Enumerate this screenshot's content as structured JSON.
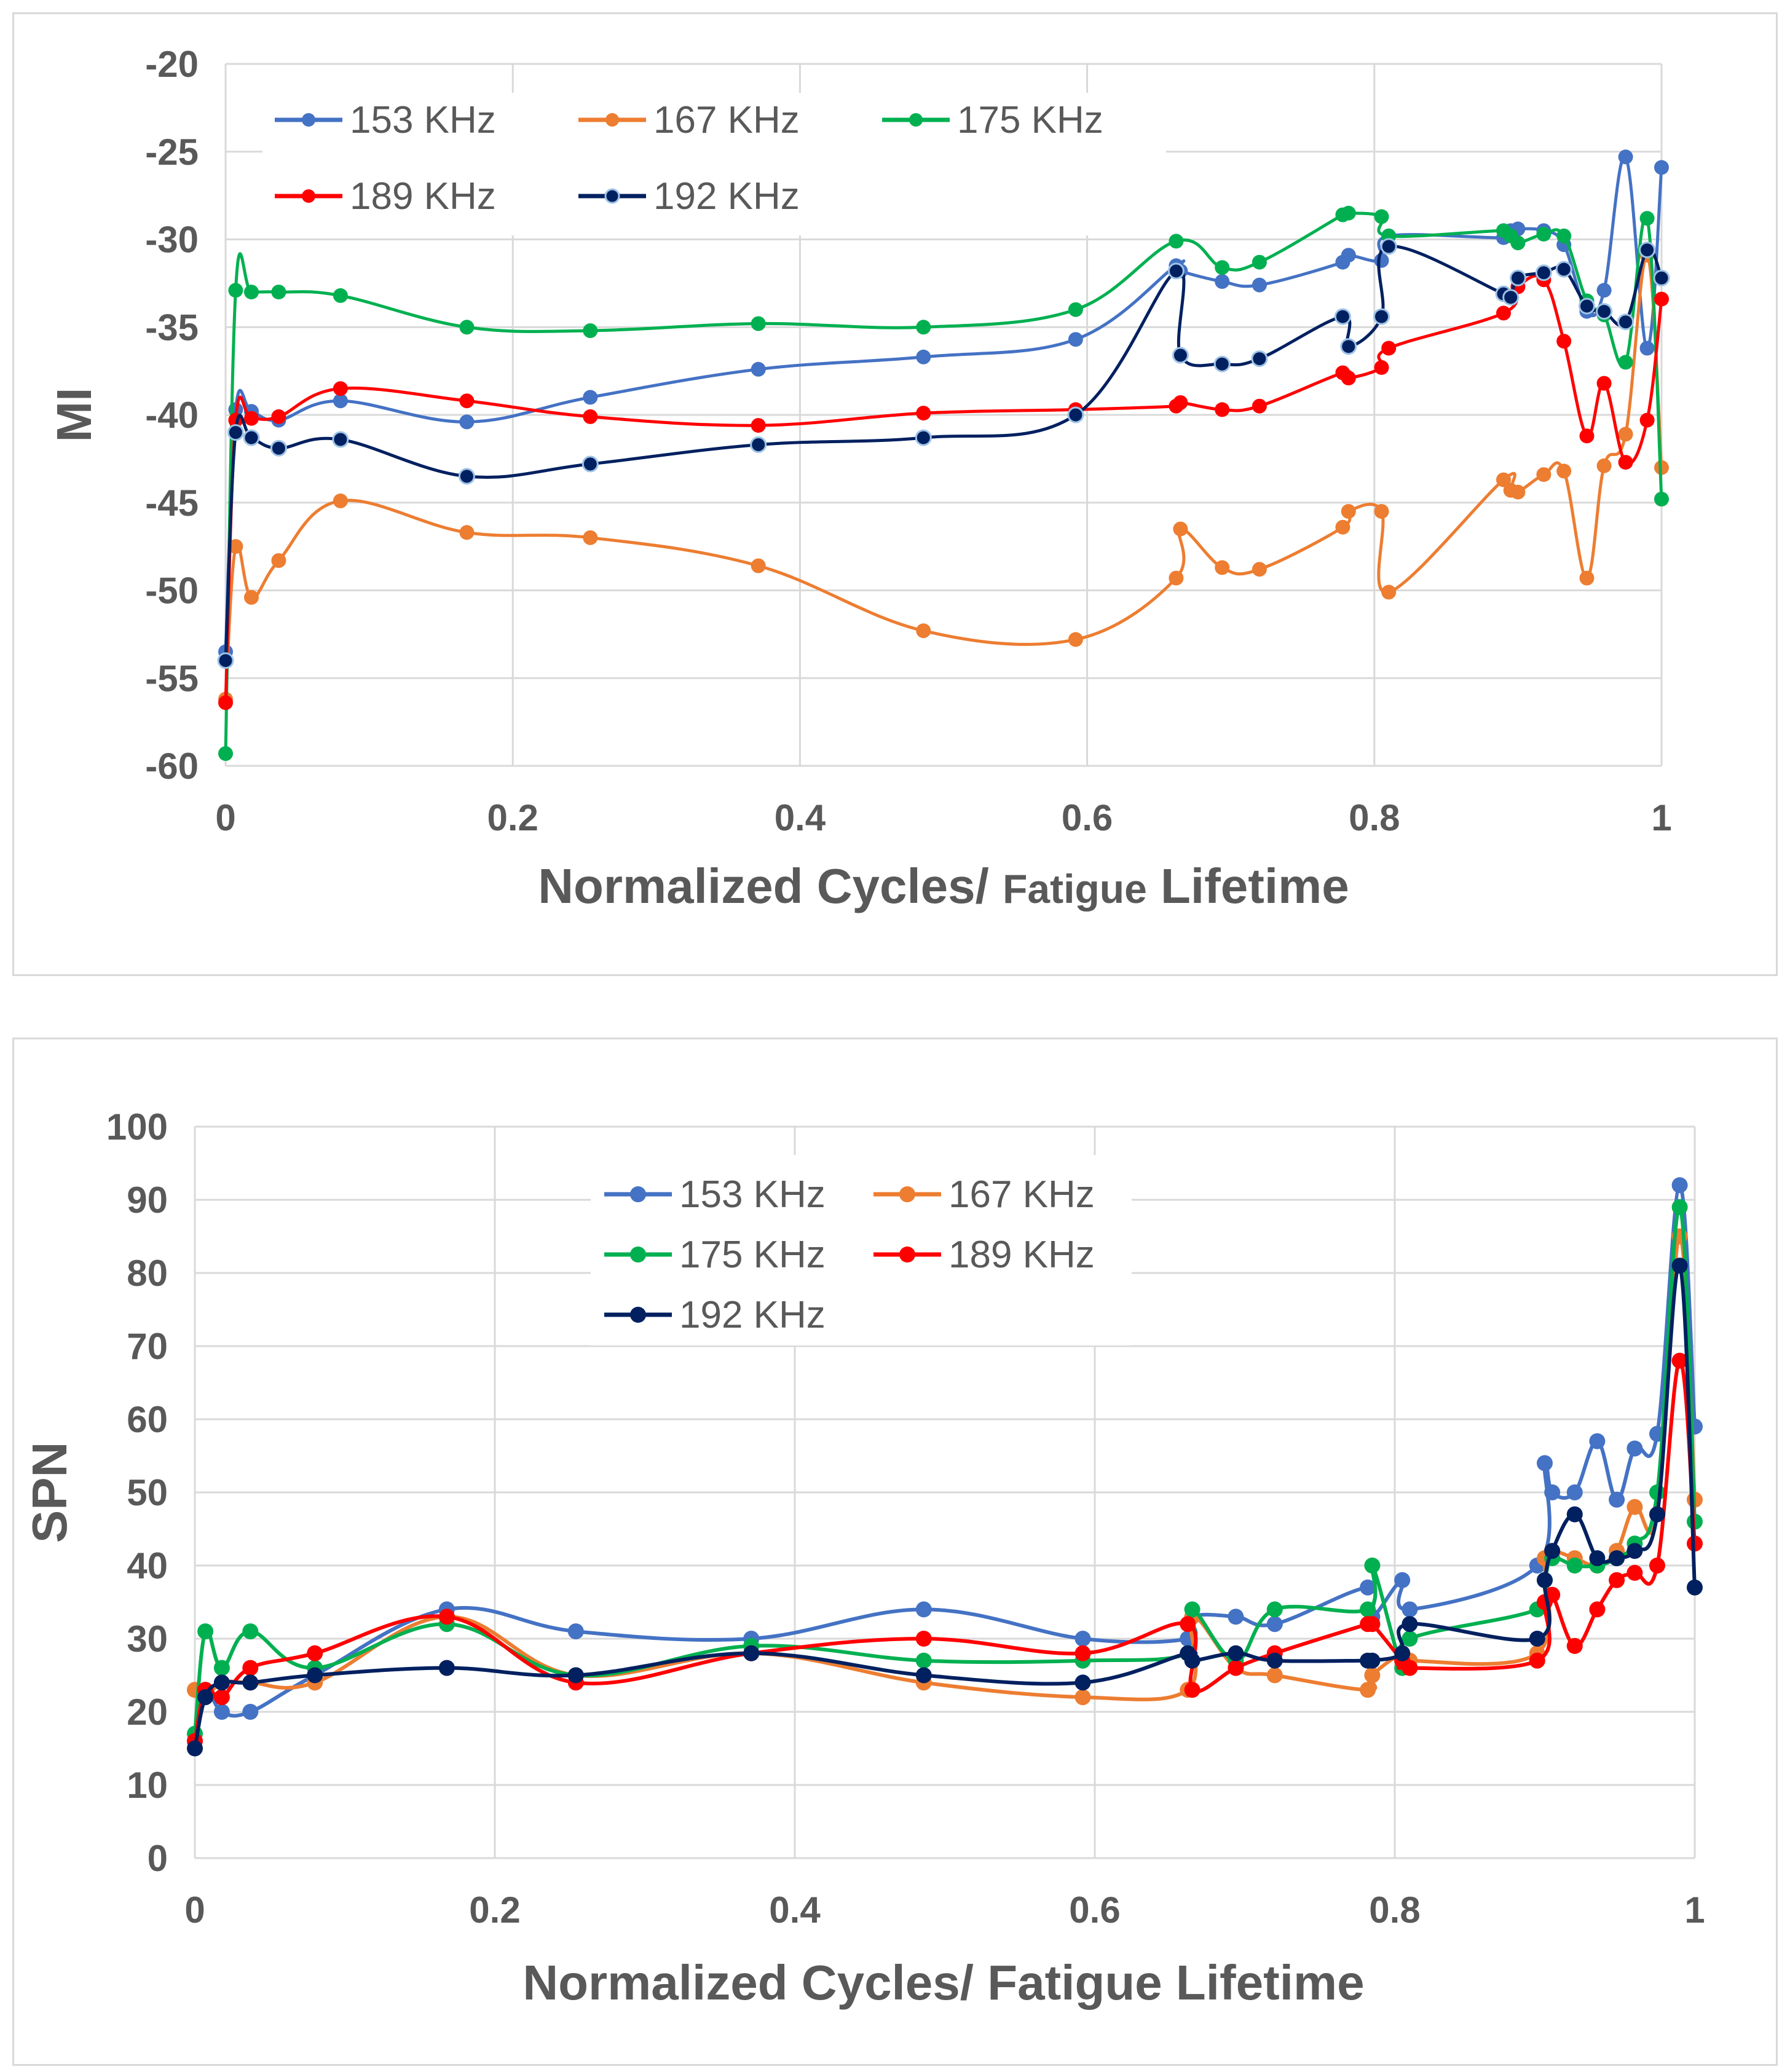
{
  "chart_data": [
    {
      "type": "line",
      "id": "mi",
      "xlabel": "Normalized Cycles/ Fatigue Lifetime",
      "xlabel_parts": [
        "Normalized Cycles/ ",
        "Fatigue",
        " Lifetime"
      ],
      "ylabel": "MI",
      "xlim": [
        0,
        1
      ],
      "ylim": [
        -60,
        -20
      ],
      "xticks": [
        0,
        0.2,
        0.4,
        0.6,
        0.8,
        1
      ],
      "xtick_labels": [
        "0",
        "0.2",
        "0.4",
        "0.6",
        "0.8",
        "1"
      ],
      "yticks": [
        -60,
        -55,
        -50,
        -45,
        -40,
        -35,
        -30,
        -25,
        -20
      ],
      "ytick_labels": [
        "-60",
        "-55",
        "-50",
        "-45",
        "-40",
        "-35",
        "-30",
        "-25",
        "-20"
      ],
      "grid": true,
      "legend_position": "top-left",
      "series": [
        {
          "name": "153 KHz",
          "color": "#4472C4",
          "x": [
            0,
            0.007,
            0.018,
            0.037,
            0.08,
            0.168,
            0.254,
            0.371,
            0.486,
            0.592,
            0.662,
            0.665,
            0.694,
            0.72,
            0.778,
            0.782,
            0.805,
            0.81,
            0.89,
            0.895,
            0.9,
            0.918,
            0.932,
            0.948,
            0.96,
            0.975,
            0.99,
            1
          ],
          "y": [
            -53.5,
            -39.7,
            -39.8,
            -40.3,
            -39.2,
            -40.4,
            -39.0,
            -37.4,
            -36.7,
            -35.7,
            -31.5,
            -31.8,
            -32.4,
            -32.6,
            -31.3,
            -30.9,
            -31.2,
            -29.8,
            -29.9,
            -29.5,
            -29.4,
            -29.5,
            -30.3,
            -34.1,
            -32.9,
            -25.3,
            -36.2,
            -25.9
          ]
        },
        {
          "name": "167 KHz",
          "color": "#ED7D31",
          "x": [
            0,
            0.007,
            0.018,
            0.037,
            0.08,
            0.168,
            0.254,
            0.371,
            0.486,
            0.592,
            0.662,
            0.665,
            0.694,
            0.72,
            0.778,
            0.782,
            0.805,
            0.81,
            0.89,
            0.895,
            0.9,
            0.918,
            0.932,
            0.948,
            0.96,
            0.975,
            0.99,
            1
          ],
          "y": [
            -56.2,
            -47.5,
            -50.4,
            -48.3,
            -44.9,
            -46.7,
            -47.0,
            -48.6,
            -52.3,
            -52.8,
            -49.3,
            -46.5,
            -48.7,
            -48.8,
            -46.4,
            -45.5,
            -45.5,
            -50.1,
            -43.7,
            -44.3,
            -44.4,
            -43.4,
            -43.2,
            -49.3,
            -42.9,
            -41.1,
            -30.9,
            -43.0
          ]
        },
        {
          "name": "175 KHz",
          "color": "#00B050",
          "x": [
            0,
            0.007,
            0.018,
            0.037,
            0.08,
            0.168,
            0.254,
            0.371,
            0.486,
            0.592,
            0.662,
            0.694,
            0.72,
            0.778,
            0.782,
            0.805,
            0.81,
            0.89,
            0.895,
            0.9,
            0.918,
            0.932,
            0.948,
            0.96,
            0.975,
            0.99,
            1
          ],
          "y": [
            -59.3,
            -32.9,
            -33.0,
            -33.0,
            -33.2,
            -35.0,
            -35.2,
            -34.8,
            -35.0,
            -34.0,
            -30.1,
            -31.6,
            -31.3,
            -28.6,
            -28.5,
            -28.7,
            -29.8,
            -29.5,
            -29.8,
            -30.2,
            -29.7,
            -29.8,
            -33.5,
            -34.3,
            -37.0,
            -28.8,
            -44.8
          ]
        },
        {
          "name": "189 KHz",
          "color": "#FF0000",
          "x": [
            0,
            0.007,
            0.018,
            0.037,
            0.08,
            0.168,
            0.254,
            0.371,
            0.486,
            0.592,
            0.662,
            0.665,
            0.694,
            0.72,
            0.778,
            0.782,
            0.805,
            0.81,
            0.89,
            0.9,
            0.918,
            0.932,
            0.948,
            0.96,
            0.975,
            0.99,
            1
          ],
          "y": [
            -56.4,
            -40.3,
            -40.2,
            -40.1,
            -38.5,
            -39.2,
            -40.1,
            -40.6,
            -39.9,
            -39.7,
            -39.5,
            -39.3,
            -39.7,
            -39.5,
            -37.6,
            -37.9,
            -37.3,
            -36.2,
            -34.2,
            -32.7,
            -32.3,
            -35.8,
            -41.2,
            -38.2,
            -42.7,
            -40.3,
            -33.4
          ]
        },
        {
          "name": "192 KHz",
          "color": "#002060",
          "x": [
            0,
            0.007,
            0.018,
            0.037,
            0.08,
            0.168,
            0.254,
            0.371,
            0.486,
            0.592,
            0.662,
            0.665,
            0.694,
            0.72,
            0.778,
            0.782,
            0.805,
            0.81,
            0.89,
            0.895,
            0.9,
            0.918,
            0.932,
            0.948,
            0.96,
            0.975,
            0.99,
            1
          ],
          "y": [
            -54.0,
            -41.0,
            -41.3,
            -41.9,
            -41.4,
            -43.5,
            -42.8,
            -41.7,
            -41.3,
            -40.0,
            -31.8,
            -36.6,
            -37.1,
            -36.8,
            -34.4,
            -36.1,
            -34.4,
            -30.4,
            -33.1,
            -33.3,
            -32.2,
            -31.9,
            -31.7,
            -33.8,
            -34.1,
            -34.7,
            -30.6,
            -32.2
          ]
        }
      ]
    },
    {
      "type": "line",
      "id": "spn",
      "xlabel": "Normalized Cycles/ Fatigue Lifetime",
      "ylabel": "SPN",
      "xlim": [
        0,
        1
      ],
      "ylim": [
        0,
        100
      ],
      "xticks": [
        0,
        0.2,
        0.4,
        0.6,
        0.8,
        1
      ],
      "xtick_labels": [
        "0",
        "0.2",
        "0.4",
        "0.6",
        "0.8",
        "1"
      ],
      "yticks": [
        0,
        10,
        20,
        30,
        40,
        50,
        60,
        70,
        80,
        90,
        100
      ],
      "ytick_labels": [
        "0",
        "10",
        "20",
        "30",
        "40",
        "50",
        "60",
        "70",
        "80",
        "90",
        "100"
      ],
      "grid": true,
      "legend_position": "top-center",
      "series": [
        {
          "name": "153 KHz",
          "color": "#4472C4",
          "x": [
            0,
            0.007,
            0.018,
            0.037,
            0.08,
            0.168,
            0.254,
            0.371,
            0.486,
            0.592,
            0.662,
            0.665,
            0.694,
            0.72,
            0.782,
            0.785,
            0.805,
            0.81,
            0.895,
            0.9,
            0.905,
            0.92,
            0.935,
            0.948,
            0.96,
            0.975,
            0.99,
            1
          ],
          "y": [
            16,
            23,
            20,
            20,
            25,
            34,
            31,
            30,
            34,
            30,
            30,
            33,
            33,
            32,
            37,
            33,
            38,
            34,
            40,
            54,
            50,
            50,
            57,
            49,
            56,
            58,
            92,
            59
          ]
        },
        {
          "name": "167 KHz",
          "color": "#ED7D31",
          "x": [
            0,
            0.007,
            0.018,
            0.037,
            0.08,
            0.168,
            0.254,
            0.371,
            0.486,
            0.592,
            0.662,
            0.665,
            0.694,
            0.72,
            0.782,
            0.785,
            0.805,
            0.81,
            0.895,
            0.9,
            0.905,
            0.92,
            0.935,
            0.948,
            0.96,
            0.975,
            0.99,
            1
          ],
          "y": [
            23,
            22,
            24,
            24,
            24,
            33,
            25,
            28,
            24,
            22,
            23,
            33,
            26,
            25,
            23,
            25,
            28,
            27,
            28,
            41,
            42,
            41,
            40,
            42,
            48,
            47,
            85,
            49
          ]
        },
        {
          "name": "175 KHz",
          "color": "#00B050",
          "x": [
            0,
            0.007,
            0.018,
            0.037,
            0.08,
            0.168,
            0.254,
            0.371,
            0.486,
            0.592,
            0.662,
            0.665,
            0.694,
            0.72,
            0.782,
            0.785,
            0.805,
            0.81,
            0.895,
            0.9,
            0.905,
            0.92,
            0.935,
            0.948,
            0.96,
            0.975,
            0.99,
            1
          ],
          "y": [
            17,
            31,
            26,
            31,
            26,
            32,
            25,
            29,
            27,
            27,
            28,
            34,
            27,
            34,
            34,
            40,
            26,
            30,
            34,
            38,
            41,
            40,
            40,
            41,
            43,
            50,
            89,
            46
          ]
        },
        {
          "name": "189 KHz",
          "color": "#FF0000",
          "x": [
            0,
            0.007,
            0.018,
            0.037,
            0.08,
            0.168,
            0.254,
            0.371,
            0.486,
            0.592,
            0.662,
            0.665,
            0.694,
            0.72,
            0.782,
            0.785,
            0.805,
            0.81,
            0.895,
            0.9,
            0.905,
            0.92,
            0.935,
            0.948,
            0.96,
            0.975,
            0.99,
            1
          ],
          "y": [
            16,
            23,
            22,
            26,
            28,
            33,
            24,
            28,
            30,
            28,
            32,
            23,
            26,
            28,
            32,
            32,
            27,
            26,
            27,
            35,
            36,
            29,
            34,
            38,
            39,
            40,
            68,
            43
          ]
        },
        {
          "name": "192 KHz",
          "color": "#002060",
          "x": [
            0,
            0.007,
            0.018,
            0.037,
            0.08,
            0.168,
            0.254,
            0.371,
            0.486,
            0.592,
            0.662,
            0.665,
            0.694,
            0.72,
            0.782,
            0.785,
            0.805,
            0.81,
            0.895,
            0.9,
            0.905,
            0.92,
            0.935,
            0.948,
            0.96,
            0.975,
            0.99,
            1
          ],
          "y": [
            15,
            22,
            24,
            24,
            25,
            26,
            25,
            28,
            25,
            24,
            28,
            27,
            28,
            27,
            27,
            27,
            28,
            32,
            30,
            38,
            42,
            47,
            41,
            41,
            42,
            47,
            81,
            37
          ]
        }
      ]
    }
  ]
}
